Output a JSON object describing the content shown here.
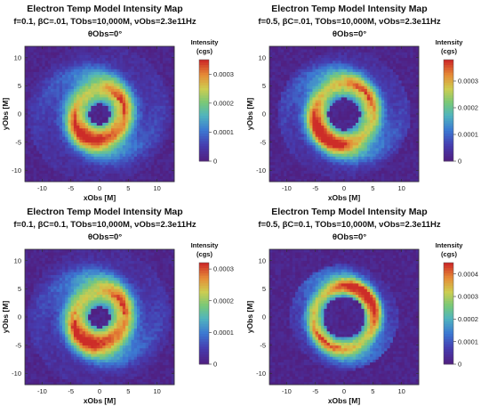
{
  "figure": {
    "panels": [
      {
        "title": "Electron Temp Model Intensity Map",
        "params": "f=0.1, βC=.01, TObs=10,000M, νObs=2.3e11Hz",
        "angle": "θObs=0°",
        "colorbar_label_line1": "Intensity",
        "colorbar_label_line2": "(cgs)",
        "style": {
          "ring_radius": 4.2,
          "ring_width": 2.2,
          "disk_extent": 11,
          "bright_side": "lower"
        }
      },
      {
        "title": "Electron Temp Model Intensity Map",
        "params": "f=0.5, βC=.01, TObs=10,000M, νObs=2.3e11Hz",
        "angle": "θObs=0°",
        "colorbar_label_line1": "Intensity",
        "colorbar_label_line2": "(cgs)",
        "style": {
          "ring_radius": 5.0,
          "ring_width": 2.0,
          "disk_extent": 10,
          "bright_side": "lower-left"
        }
      },
      {
        "title": "Electron Temp Model Intensity Map",
        "params": "f=0.1, βC=0.1, TObs=10,000M, νObs=2.3e11Hz",
        "angle": "θObs=0°",
        "colorbar_label_line1": "Intensity",
        "colorbar_label_line2": "(cgs)",
        "style": {
          "ring_radius": 4.3,
          "ring_width": 2.3,
          "disk_extent": 11,
          "bright_side": "lower"
        }
      },
      {
        "title": "Electron Temp Model Intensity Map",
        "params": "f=0.5, βC=0.1, TObs=10,000M, νObs=2.3e11Hz",
        "angle": "θObs=0°",
        "colorbar_label_line1": "Intensity",
        "colorbar_label_line2": "(cgs)",
        "style": {
          "ring_radius": 5.3,
          "ring_width": 1.5,
          "disk_extent": 8,
          "bright_side": "upper-right"
        }
      }
    ]
  },
  "chart_data": [
    {
      "type": "heatmap",
      "title": "Electron Temp Model Intensity Map",
      "subtitle": "f=0.1, βC=.01, TObs=10,000M, νObs=2.3e11Hz",
      "annotation": "θObs=0°",
      "xlabel": "xObs [M]",
      "ylabel": "yObs [M]",
      "xlim": [
        -13,
        13
      ],
      "ylim": [
        -12,
        12
      ],
      "xticks": [
        -10,
        -5,
        0,
        5,
        10
      ],
      "yticks": [
        -10,
        -5,
        0,
        5,
        10
      ],
      "colorbar": {
        "label": "Intensity (cgs)",
        "ticks": [
          0,
          0.0001,
          0.0002,
          0.0003
        ],
        "tick_labels": [
          "0",
          "0.0001",
          "0.0002",
          "0.0003"
        ],
        "range": [
          0,
          0.00035
        ],
        "colormap": "rainbow"
      },
      "grid": false
    },
    {
      "type": "heatmap",
      "title": "Electron Temp Model Intensity Map",
      "subtitle": "f=0.5, βC=.01, TObs=10,000M, νObs=2.3e11Hz",
      "annotation": "θObs=0°",
      "xlabel": "xObs [M]",
      "ylabel": "yObs [M]",
      "xlim": [
        -13,
        13
      ],
      "ylim": [
        -12,
        12
      ],
      "xticks": [
        -10,
        -5,
        0,
        5,
        10
      ],
      "yticks": [
        -10,
        -5,
        0,
        5,
        10
      ],
      "colorbar": {
        "label": "Intensity (cgs)",
        "ticks": [
          0,
          0.0001,
          0.0002,
          0.0003
        ],
        "tick_labels": [
          "0",
          "0.0001",
          "0.0002",
          "0.0003"
        ],
        "range": [
          0,
          0.00038
        ],
        "colormap": "rainbow"
      },
      "grid": false
    },
    {
      "type": "heatmap",
      "title": "Electron Temp Model Intensity Map",
      "subtitle": "f=0.1, βC=0.1, TObs=10,000M, νObs=2.3e11Hz",
      "annotation": "θObs=0°",
      "xlabel": "xObs [M]",
      "ylabel": "yObs [M]",
      "xlim": [
        -13,
        13
      ],
      "ylim": [
        -12,
        12
      ],
      "xticks": [
        -10,
        -5,
        0,
        5,
        10
      ],
      "yticks": [
        -10,
        -5,
        0,
        5,
        10
      ],
      "colorbar": {
        "label": "Intensity (cgs)",
        "ticks": [
          0,
          0.0001,
          0.0002,
          0.0003
        ],
        "tick_labels": [
          "0",
          "0.0001",
          "0.0002",
          "0.0003"
        ],
        "range": [
          0,
          0.00032
        ],
        "colormap": "rainbow"
      },
      "grid": false
    },
    {
      "type": "heatmap",
      "title": "Electron Temp Model Intensity Map",
      "subtitle": "f=0.5, βC=0.1, TObs=10,000M, νObs=2.3e11Hz",
      "annotation": "θObs=0°",
      "xlabel": "xObs [M]",
      "ylabel": "yObs [M]",
      "xlim": [
        -13,
        13
      ],
      "ylim": [
        -12,
        12
      ],
      "xticks": [
        -10,
        -5,
        0,
        5,
        10
      ],
      "yticks": [
        -10,
        -5,
        0,
        5,
        10
      ],
      "colorbar": {
        "label": "Intensity (cgs)",
        "ticks": [
          0,
          0.0001,
          0.0002,
          0.0003,
          0.0004
        ],
        "tick_labels": [
          "0",
          "0.0001",
          "0.0002",
          "0.0003",
          "0.0004"
        ],
        "range": [
          0,
          0.00045
        ],
        "colormap": "rainbow"
      },
      "grid": false
    }
  ]
}
